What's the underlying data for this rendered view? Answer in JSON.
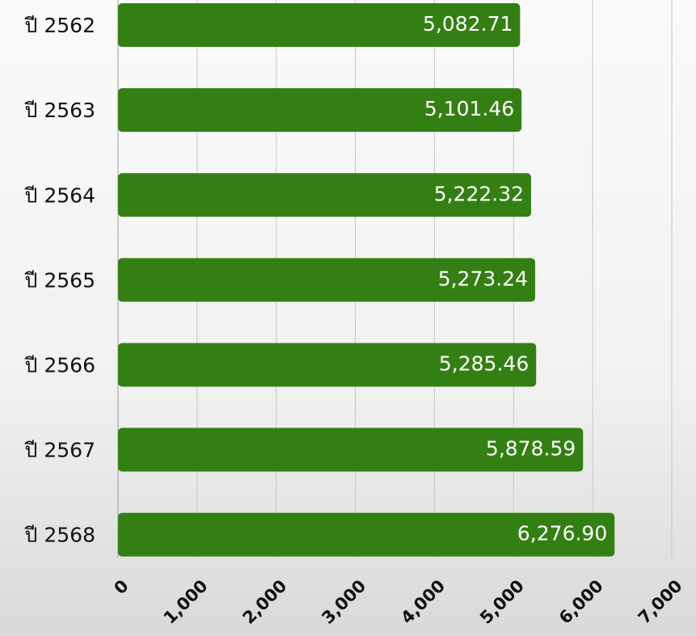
{
  "chart_data": {
    "type": "hbar",
    "categories": [
      "ปี 2562",
      "ปี 2563",
      "ปี 2564",
      "ปี 2565",
      "ปี 2566",
      "ปี 2567",
      "ปี 2568"
    ],
    "values": [
      5082.71,
      5101.46,
      5222.32,
      5273.24,
      5285.46,
      5878.59,
      6276.9
    ],
    "value_labels": [
      "5,082.71",
      "5,101.46",
      "5,222.32",
      "5,273.24",
      "5,285.46",
      "5,878.59",
      "6,276.90"
    ],
    "color": "#337f14",
    "xlim": [
      0,
      7000
    ],
    "xticks": [
      0,
      {
        "value": 1000,
        "label": "1,000"
      },
      {
        "value": 2000,
        "label": "2,000"
      },
      {
        "value": 3000,
        "label": "3,000"
      },
      {
        "value": 4000,
        "label": "4,000"
      },
      {
        "value": 5000,
        "label": "5,000"
      },
      {
        "value": 6000,
        "label": "6,000"
      },
      {
        "value": 7000,
        "label": "7,000"
      }
    ],
    "grid": true
  }
}
